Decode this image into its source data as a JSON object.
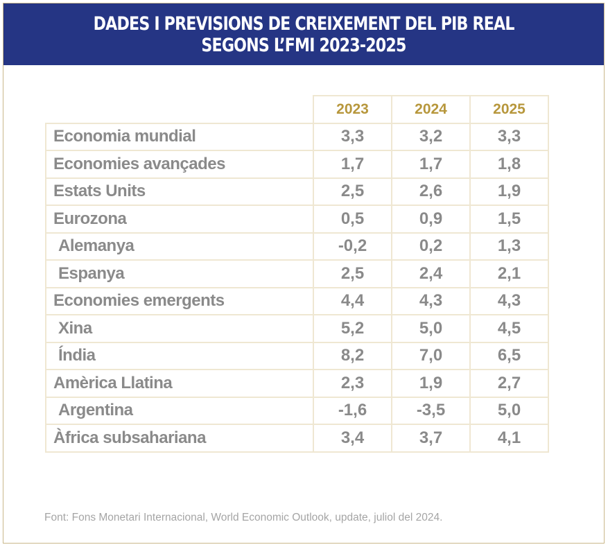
{
  "header": {
    "title_line1": "DADES I PREVISIONS DE CREIXEMENT DEL PIB REAL",
    "title_line2": "SEGONS L’FMI 2023-2025"
  },
  "chart_data": {
    "type": "table",
    "title": "DADES I PREVISIONS DE CREIXEMENT DEL PIB REAL SEGONS L’FMI 2023-2025",
    "columns": [
      "2023",
      "2024",
      "2025"
    ],
    "rows": [
      {
        "label": "Economia mundial",
        "indent": false,
        "values": [
          "3,3",
          "3,2",
          "3,3"
        ]
      },
      {
        "label": "Economies avançades",
        "indent": false,
        "values": [
          "1,7",
          "1,7",
          "1,8"
        ]
      },
      {
        "label": "Estats Units",
        "indent": false,
        "values": [
          "2,5",
          "2,6",
          "1,9"
        ]
      },
      {
        "label": "Eurozona",
        "indent": false,
        "values": [
          "0,5",
          "0,9",
          "1,5"
        ]
      },
      {
        "label": "Alemanya",
        "indent": true,
        "values": [
          "-0,2",
          "0,2",
          "1,3"
        ]
      },
      {
        "label": "Espanya",
        "indent": true,
        "values": [
          "2,5",
          "2,4",
          "2,1"
        ]
      },
      {
        "label": "Economies emergents",
        "indent": false,
        "values": [
          "4,4",
          "4,3",
          "4,3"
        ]
      },
      {
        "label": "Xina",
        "indent": true,
        "values": [
          "5,2",
          "5,0",
          "4,5"
        ]
      },
      {
        "label": "Índia",
        "indent": true,
        "values": [
          "8,2",
          "7,0",
          "6,5"
        ]
      },
      {
        "label": "Amèrica Llatina",
        "indent": false,
        "values": [
          "2,3",
          "1,9",
          "2,7"
        ]
      },
      {
        "label": "Argentina",
        "indent": true,
        "values": [
          "-1,6",
          "-3,5",
          "5,0"
        ]
      },
      {
        "label": "Àfrica subsahariana",
        "indent": false,
        "values": [
          "3,4",
          "3,7",
          "4,1"
        ]
      }
    ]
  },
  "source": "Font: Fons Monetari Internacional, World Economic Outlook, update, juliol del 2024.",
  "colors": {
    "header_bg": "#253584",
    "year_text": "#b7973c",
    "body_text": "#8a8a8a",
    "grid": "#efe7d2",
    "frame": "#c9b78a"
  }
}
